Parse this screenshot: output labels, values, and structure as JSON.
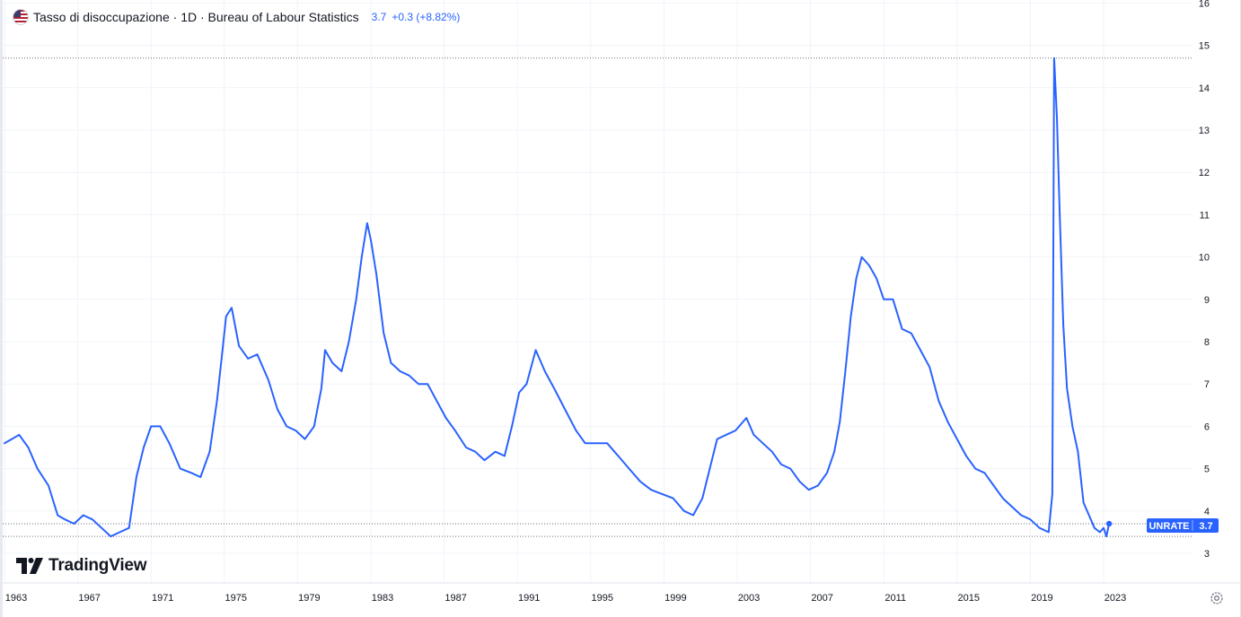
{
  "header": {
    "title": "Tasso di disoccupazione · 1D · Bureau of Labour Statistics",
    "last_value": "3.7",
    "change": "+0.3 (+8.82%)",
    "flag_icon": "us-flag-icon"
  },
  "branding": {
    "logo_text": "TradingView",
    "logo_icon": "tradingview-logo-icon"
  },
  "price_label": {
    "symbol": "UNRATE",
    "value": "3.7"
  },
  "settings_icon": "settings-gear-icon",
  "colors": {
    "line": "#2962ff",
    "grid": "#f0f3fa",
    "axis_text": "#131722",
    "label_bg": "#2962ff"
  },
  "chart_data": {
    "type": "line",
    "title": "Tasso di disoccupazione",
    "xlabel": "",
    "ylabel": "",
    "xlim": [
      1963,
      2027.8
    ],
    "ylim": [
      3,
      16
    ],
    "grid": true,
    "x_ticks": [
      "1963",
      "1967",
      "1971",
      "1975",
      "1979",
      "1983",
      "1987",
      "1991",
      "1995",
      "1999",
      "2003",
      "2007",
      "2011",
      "2015",
      "2019",
      "2023"
    ],
    "y_ticks": [
      "3",
      "4",
      "5",
      "6",
      "7",
      "8",
      "9",
      "10",
      "11",
      "12",
      "13",
      "14",
      "15",
      "16"
    ],
    "reference_lines": [
      14.7,
      3.7,
      3.4
    ],
    "series": [
      {
        "name": "UNRATE",
        "x": [
          1963.0,
          1963.4,
          1963.8,
          1964.3,
          1964.8,
          1965.4,
          1965.9,
          1966.3,
          1966.8,
          1967.3,
          1967.8,
          1968.3,
          1968.8,
          1969.3,
          1969.8,
          1970.2,
          1970.6,
          1971.0,
          1971.5,
          1972.0,
          1972.6,
          1973.2,
          1973.7,
          1974.2,
          1974.6,
          1974.9,
          1975.1,
          1975.4,
          1975.8,
          1976.3,
          1976.8,
          1977.4,
          1977.9,
          1978.4,
          1978.9,
          1979.4,
          1979.9,
          1980.3,
          1980.5,
          1980.9,
          1981.4,
          1981.8,
          1982.2,
          1982.5,
          1982.8,
          1983.0,
          1983.3,
          1983.7,
          1984.1,
          1984.6,
          1985.1,
          1985.6,
          1986.1,
          1986.6,
          1987.1,
          1987.6,
          1988.2,
          1988.7,
          1989.2,
          1989.8,
          1990.3,
          1990.7,
          1991.1,
          1991.5,
          1992.0,
          1992.5,
          1993.0,
          1993.6,
          1994.2,
          1994.7,
          1995.3,
          1995.9,
          1996.5,
          1997.1,
          1997.7,
          1998.3,
          1998.9,
          1999.5,
          2000.1,
          2000.6,
          2001.1,
          2001.5,
          2001.9,
          2002.4,
          2002.9,
          2003.5,
          2003.9,
          2004.4,
          2004.9,
          2005.4,
          2005.9,
          2006.4,
          2006.9,
          2007.4,
          2007.9,
          2008.3,
          2008.6,
          2008.9,
          2009.2,
          2009.5,
          2009.8,
          2010.2,
          2010.6,
          2011.0,
          2011.5,
          2012.0,
          2012.5,
          2013.0,
          2013.5,
          2014.0,
          2014.5,
          2015.0,
          2015.5,
          2016.0,
          2016.5,
          2017.0,
          2017.5,
          2018.0,
          2018.5,
          2019.0,
          2019.5,
          2020.0,
          2020.2,
          2020.3,
          2020.45,
          2020.6,
          2020.8,
          2021.0,
          2021.3,
          2021.6,
          2021.9,
          2022.2,
          2022.5,
          2022.8,
          2023.0,
          2023.15,
          2023.3
        ],
        "values": [
          5.6,
          5.7,
          5.8,
          5.5,
          5.0,
          4.6,
          3.9,
          3.8,
          3.7,
          3.9,
          3.8,
          3.6,
          3.4,
          3.5,
          3.6,
          4.8,
          5.5,
          6.0,
          6.0,
          5.6,
          5.0,
          4.9,
          4.8,
          5.4,
          6.6,
          7.8,
          8.6,
          8.8,
          7.9,
          7.6,
          7.7,
          7.1,
          6.4,
          6.0,
          5.9,
          5.7,
          6.0,
          6.9,
          7.8,
          7.5,
          7.3,
          8.0,
          9.0,
          10.0,
          10.8,
          10.4,
          9.6,
          8.2,
          7.5,
          7.3,
          7.2,
          7.0,
          7.0,
          6.6,
          6.2,
          5.9,
          5.5,
          5.4,
          5.2,
          5.4,
          5.3,
          6.0,
          6.8,
          7.0,
          7.8,
          7.3,
          6.9,
          6.4,
          5.9,
          5.6,
          5.6,
          5.6,
          5.3,
          5.0,
          4.7,
          4.5,
          4.4,
          4.3,
          4.0,
          3.9,
          4.3,
          5.0,
          5.7,
          5.8,
          5.9,
          6.2,
          5.8,
          5.6,
          5.4,
          5.1,
          5.0,
          4.7,
          4.5,
          4.6,
          4.9,
          5.4,
          6.1,
          7.3,
          8.6,
          9.5,
          10.0,
          9.8,
          9.5,
          9.0,
          9.0,
          8.3,
          8.2,
          7.8,
          7.4,
          6.6,
          6.1,
          5.7,
          5.3,
          5.0,
          4.9,
          4.6,
          4.3,
          4.1,
          3.9,
          3.8,
          3.6,
          3.5,
          4.4,
          14.7,
          13.3,
          11.1,
          8.4,
          6.9,
          6.0,
          5.4,
          4.2,
          3.9,
          3.6,
          3.5,
          3.6,
          3.4,
          3.7
        ]
      }
    ]
  }
}
